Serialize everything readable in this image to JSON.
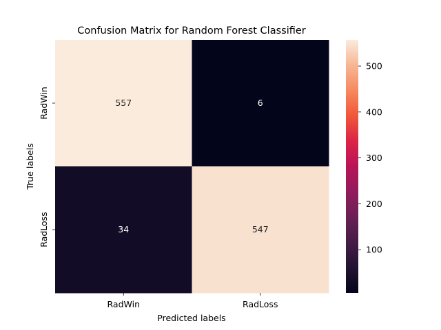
{
  "chart_data": {
    "type": "heatmap",
    "title": "Confusion Matrix for Random Forest Classifier",
    "xlabel": "Predicted labels",
    "ylabel": "True labels",
    "x_categories": [
      "RadWin",
      "RadLoss"
    ],
    "y_categories": [
      "RadWin",
      "RadLoss"
    ],
    "values": [
      [
        557,
        6
      ],
      [
        34,
        547
      ]
    ],
    "colorbar": {
      "ticks": [
        100,
        200,
        300,
        400,
        500
      ],
      "range": [
        6,
        557
      ],
      "colormap": "rocket"
    },
    "grid": false
  }
}
